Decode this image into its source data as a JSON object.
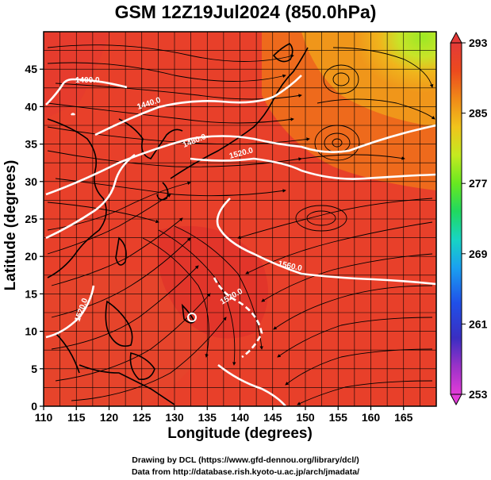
{
  "title": "GSM 12Z19Jul2024 (850.0hPa)",
  "x_axis": {
    "label": "Longitude (degrees)",
    "ticks": [
      110,
      115,
      120,
      125,
      130,
      135,
      140,
      145,
      150,
      155,
      160,
      165
    ],
    "range": [
      110,
      170
    ]
  },
  "y_axis": {
    "label": "Latitude  (degrees)",
    "ticks": [
      0,
      5,
      10,
      15,
      20,
      25,
      30,
      35,
      40,
      45
    ],
    "range": [
      0,
      50
    ]
  },
  "colorbar": {
    "ticks": [
      293,
      285,
      277,
      269,
      261,
      253
    ],
    "range": [
      253,
      293
    ],
    "colors": [
      "#e23cd8",
      "#9a32c8",
      "#3a2ec2",
      "#2050e8",
      "#1aa0f0",
      "#18d4c4",
      "#20d860",
      "#68e820",
      "#c4ea20",
      "#f0c41c",
      "#f08a18",
      "#ec4a1e",
      "#e43a38"
    ]
  },
  "contours": [
    {
      "label": "1400.0"
    },
    {
      "label": "1440.0"
    },
    {
      "label": "1480.0"
    },
    {
      "label": "1520.0"
    },
    {
      "label": "1560.0"
    },
    {
      "label": "1520.0"
    },
    {
      "label": "1520.0"
    }
  ],
  "credits": {
    "line1": "Drawing by DCL (https://www.gfd-dennou.org/library/dcl/)",
    "line2": "Data from http://database.rish.kyoto-u.ac.jp/arch/jmadata/"
  },
  "map_colors": {
    "ocean_main": "#e8402a",
    "warm_region": "#ee5a1e",
    "hot_region": "#e23028",
    "cool_region": "#b8e820",
    "land_outline": "#000000"
  }
}
